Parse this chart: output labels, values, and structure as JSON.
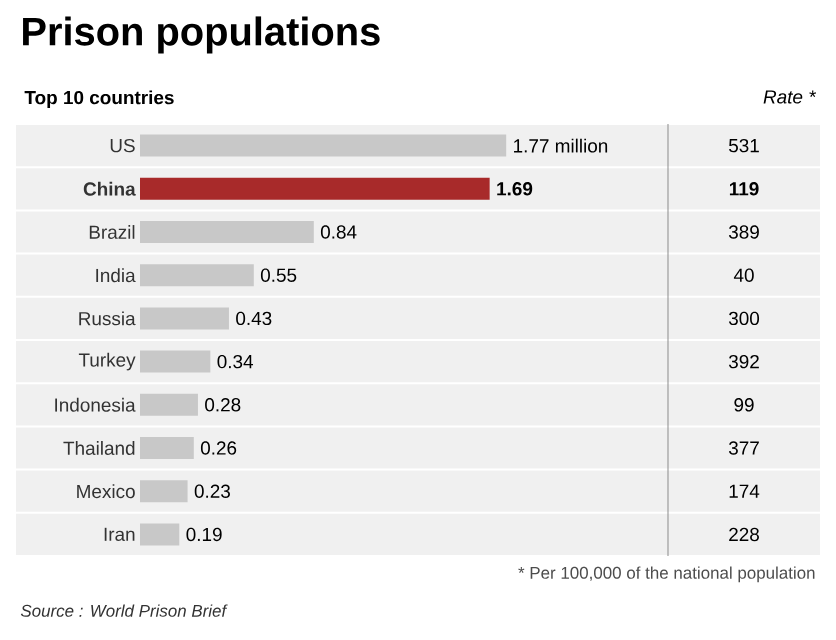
{
  "chart_data": [
    {
      "type": "bar",
      "orientation": "horizontal",
      "title": "Prison populations",
      "subtitle": "Top 10 countries",
      "categories": [
        "US",
        "China",
        "Brazil",
        "India",
        "Russia",
        "Turkey",
        "Indonesia",
        "Thailand",
        "Mexico",
        "Iran"
      ],
      "values": [
        1.77,
        1.69,
        0.84,
        0.55,
        0.43,
        0.34,
        0.28,
        0.26,
        0.23,
        0.19
      ],
      "value_labels": [
        "1.77 million",
        "1.69",
        "0.84",
        "0.55",
        "0.43",
        "0.34",
        "0.28",
        "0.26",
        "0.23",
        "0.19"
      ],
      "colors": [
        "#c8c8c8",
        "#a82a2a",
        "#c8c8c8",
        "#c8c8c8",
        "#c8c8c8",
        "#c8c8c8",
        "#c8c8c8",
        "#c8c8c8",
        "#c8c8c8",
        "#c8c8c8"
      ],
      "annotations": [
        "* Per 100,000 of the national population",
        "Source : World Prison Brief"
      ]
    },
    {
      "type": "other",
      "title": "Rate *",
      "values": [
        531,
        119,
        389,
        40,
        300,
        392,
        99,
        377,
        174,
        228
      ],
      "data_labels": true
    }
  ]
}
